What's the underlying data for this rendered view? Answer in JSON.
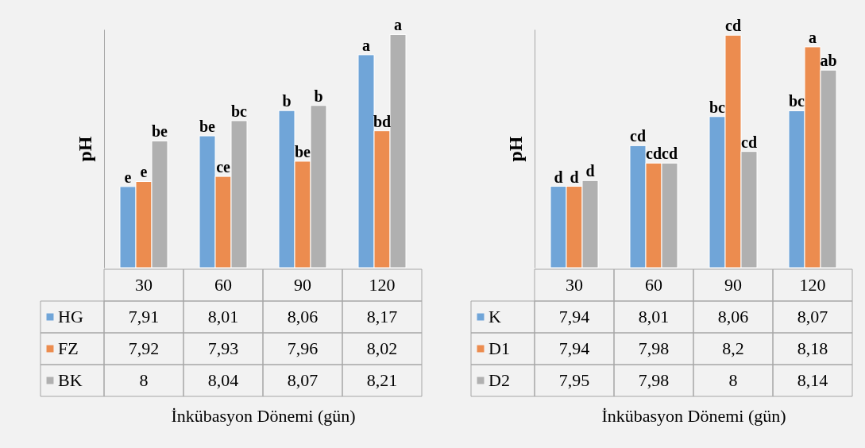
{
  "chart_data": [
    {
      "type": "bar",
      "ylabel": "pH",
      "xlabel": "İnkübasyon Dönemi (gün)",
      "categories": [
        "30",
        "60",
        "90",
        "120"
      ],
      "legend": "bottom left",
      "ylim": [
        7.75,
        8.22
      ],
      "series": [
        {
          "name": "HG",
          "color": "#70a5d8",
          "values": [
            7.91,
            8.01,
            8.06,
            8.17
          ],
          "value_labels": [
            "7,91",
            "8,01",
            "8,06",
            "8,17"
          ]
        },
        {
          "name": "FZ",
          "color": "#ec8c4f",
          "values": [
            7.92,
            7.93,
            7.96,
            8.02
          ],
          "value_labels": [
            "7,92",
            "7,93",
            "7,96",
            "8,02"
          ]
        },
        {
          "name": "BK",
          "color": "#b0b0b0",
          "values": [
            8,
            8.04,
            8.07,
            8.21
          ],
          "value_labels": [
            "8",
            "8,04",
            "8,07",
            "8,21"
          ]
        }
      ],
      "annotations": [
        "e",
        "e",
        "be",
        "be",
        "ce",
        "bc",
        "b",
        "be",
        "b",
        "a",
        "bd",
        "a"
      ]
    },
    {
      "type": "bar",
      "ylabel": "pH",
      "xlabel": "İnkübasyon Dönemi (gün)",
      "categories": [
        "30",
        "60",
        "90",
        "120"
      ],
      "legend": "bottom left",
      "ylim": [
        7.8,
        8.21
      ],
      "series": [
        {
          "name": "K",
          "color": "#70a5d8",
          "values": [
            7.94,
            8.01,
            8.06,
            8.07
          ],
          "value_labels": [
            "7,94",
            "8,01",
            "8,06",
            "8,07"
          ]
        },
        {
          "name": "D1",
          "color": "#ec8c4f",
          "values": [
            7.94,
            7.98,
            8.2,
            8.18
          ],
          "value_labels": [
            "7,94",
            "7,98",
            "8,2",
            "8,18"
          ]
        },
        {
          "name": "D2",
          "color": "#b0b0b0",
          "values": [
            7.95,
            7.98,
            8,
            8.14
          ],
          "value_labels": [
            "7,95",
            "7,98",
            "8",
            "8,14"
          ]
        }
      ],
      "annotations": [
        "d",
        "d",
        "d",
        "cd",
        "cd",
        "cd",
        "bc",
        "cd",
        "cd",
        "bc",
        "a",
        "ab"
      ]
    }
  ]
}
